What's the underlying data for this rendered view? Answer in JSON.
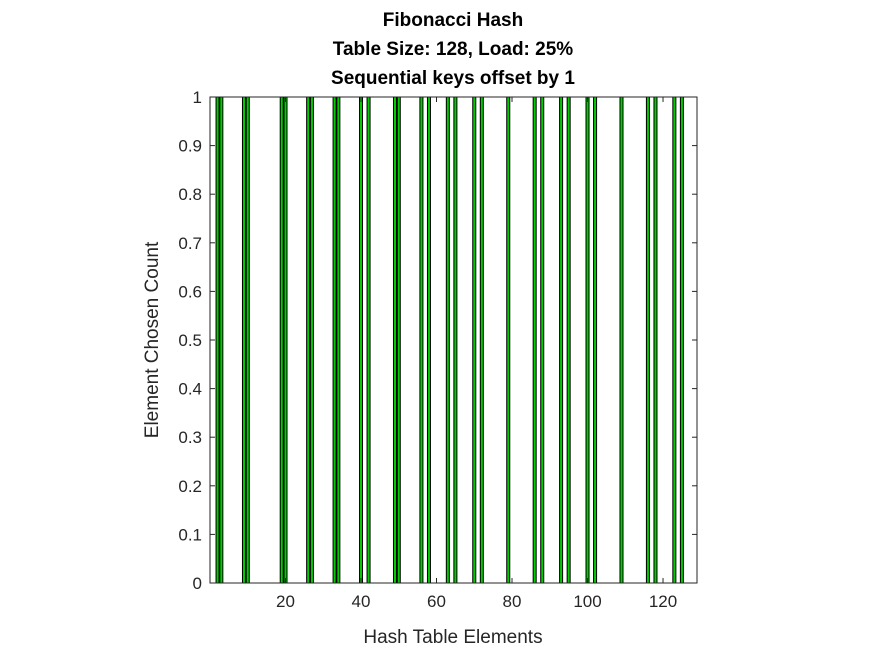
{
  "chart_data": {
    "type": "bar",
    "title_lines": [
      "Fibonacci Hash",
      "Table Size: 128, Load: 25%",
      "Sequential keys offset by 1"
    ],
    "xlabel": "Hash Table Elements",
    "ylabel": "Element Chosen Count",
    "xlim": [
      0,
      129
    ],
    "ylim": [
      0,
      1
    ],
    "x_ticks": [
      20,
      40,
      60,
      80,
      100,
      120
    ],
    "y_ticks": [
      0,
      0.1,
      0.2,
      0.3,
      0.4,
      0.5,
      0.6,
      0.7,
      0.8,
      0.9,
      1
    ],
    "y_tick_labels": [
      "0",
      "0.1",
      "0.2",
      "0.3",
      "0.4",
      "0.5",
      "0.6",
      "0.7",
      "0.8",
      "0.9",
      "1"
    ],
    "bar_value_nonzero": 1,
    "occupied_elements": [
      2,
      3,
      9,
      10,
      19,
      20,
      26,
      27,
      33,
      34,
      40,
      42,
      49,
      50,
      56,
      58,
      63,
      65,
      70,
      72,
      79,
      86,
      88,
      93,
      95,
      100,
      102,
      109,
      116,
      118,
      123,
      125
    ],
    "grid": false,
    "bar_face_color": "#00cc00",
    "bar_edge_color": "#000000"
  }
}
